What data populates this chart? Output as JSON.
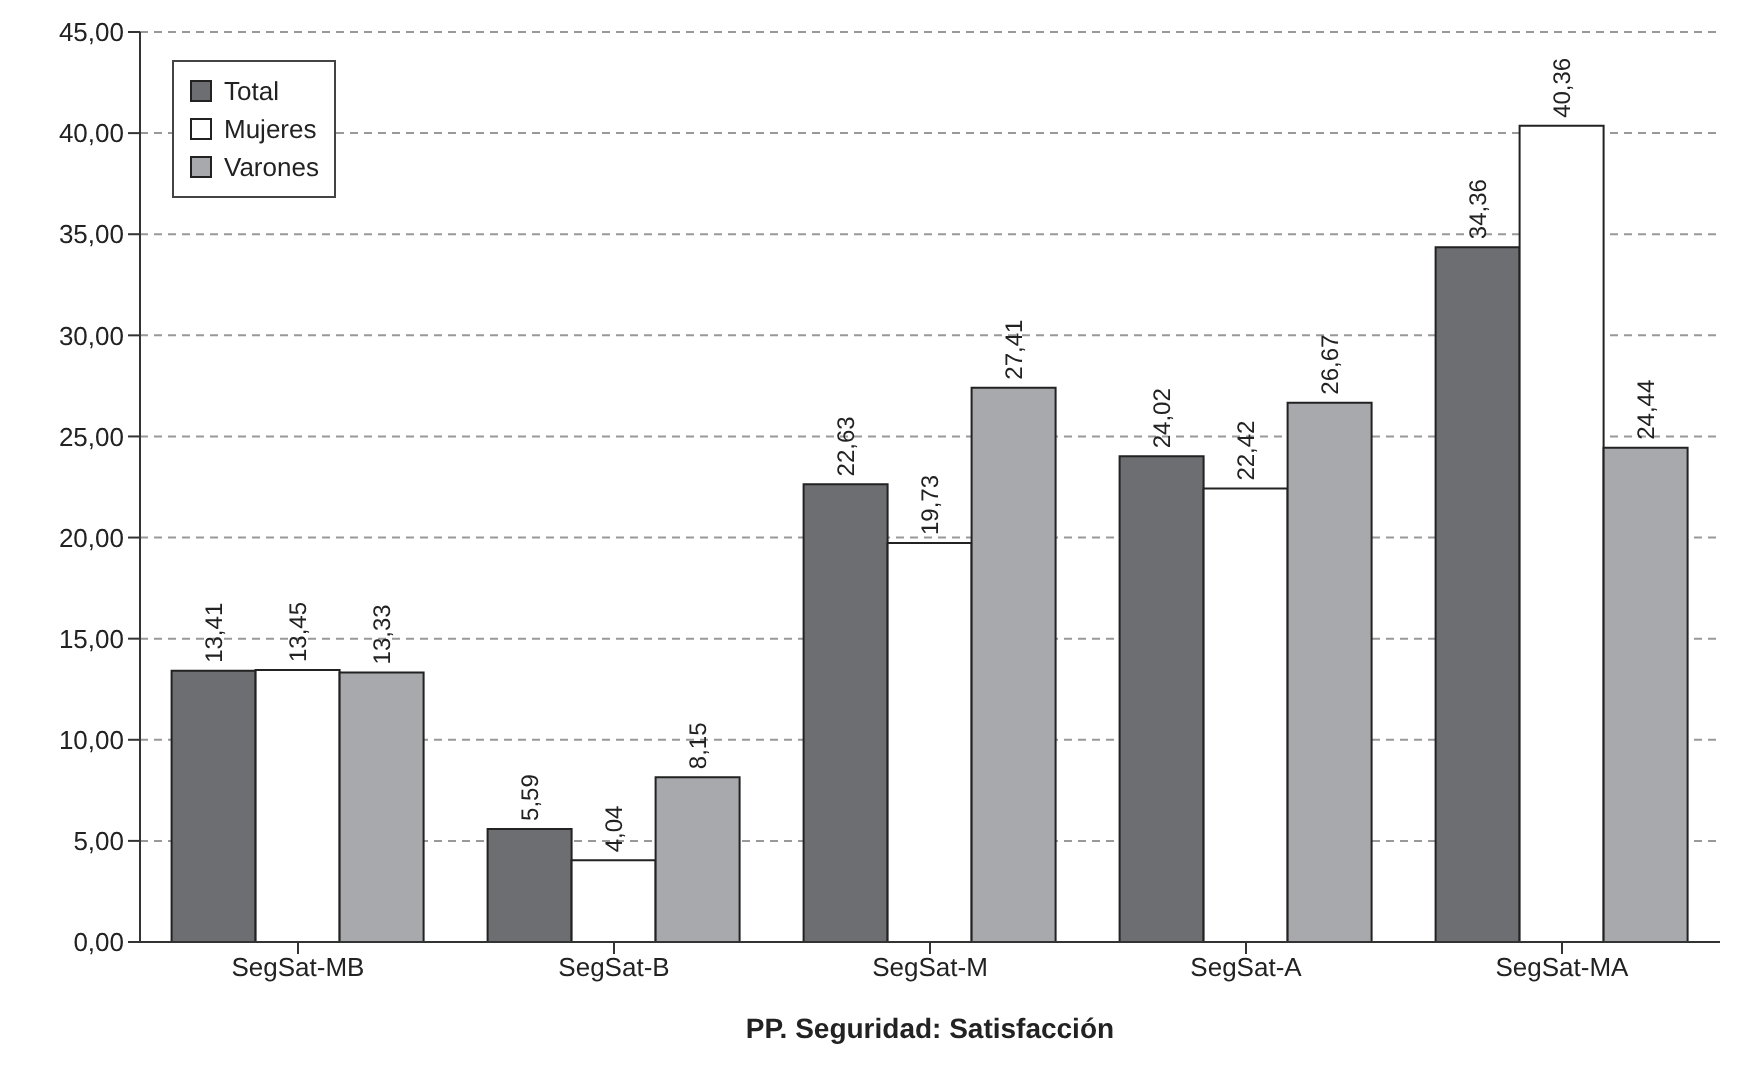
{
  "chart_data": {
    "type": "bar",
    "xlabel": "PP. Seguridad: Satisfacción",
    "categories": [
      "SegSat-MB",
      "SegSat-B",
      "SegSat-M",
      "SegSat-A",
      "SegSat-MA"
    ],
    "series": [
      {
        "name": "Total",
        "color": "#6d6e71",
        "values": [
          13.41,
          5.59,
          22.63,
          24.02,
          34.36
        ],
        "value_labels": [
          "13,41",
          "5,59",
          "22,63",
          "24,02",
          "34,36"
        ]
      },
      {
        "name": "Mujeres",
        "color": "#ffffff",
        "values": [
          13.45,
          4.04,
          19.73,
          22.42,
          40.36
        ],
        "value_labels": [
          "13,45",
          "4,04",
          "19,73",
          "22,42",
          "40,36"
        ]
      },
      {
        "name": "Varones",
        "color": "#a7a9ac",
        "values": [
          13.33,
          8.15,
          27.41,
          26.67,
          24.44
        ],
        "value_labels": [
          "13,33",
          "8,15",
          "27,41",
          "26,67",
          "24,44"
        ]
      }
    ],
    "ylim": [
      0,
      45
    ],
    "yticks": [
      {
        "value": 0,
        "label": "0,00"
      },
      {
        "value": 5,
        "label": "5,00"
      },
      {
        "value": 10,
        "label": "10,00"
      },
      {
        "value": 15,
        "label": "15,00"
      },
      {
        "value": 20,
        "label": "20,00"
      },
      {
        "value": 25,
        "label": "25,00"
      },
      {
        "value": 30,
        "label": "30,00"
      },
      {
        "value": 35,
        "label": "35,00"
      },
      {
        "value": 40,
        "label": "40,00"
      },
      {
        "value": 45,
        "label": "45,00"
      }
    ],
    "grid": "y",
    "legend": "top left"
  }
}
